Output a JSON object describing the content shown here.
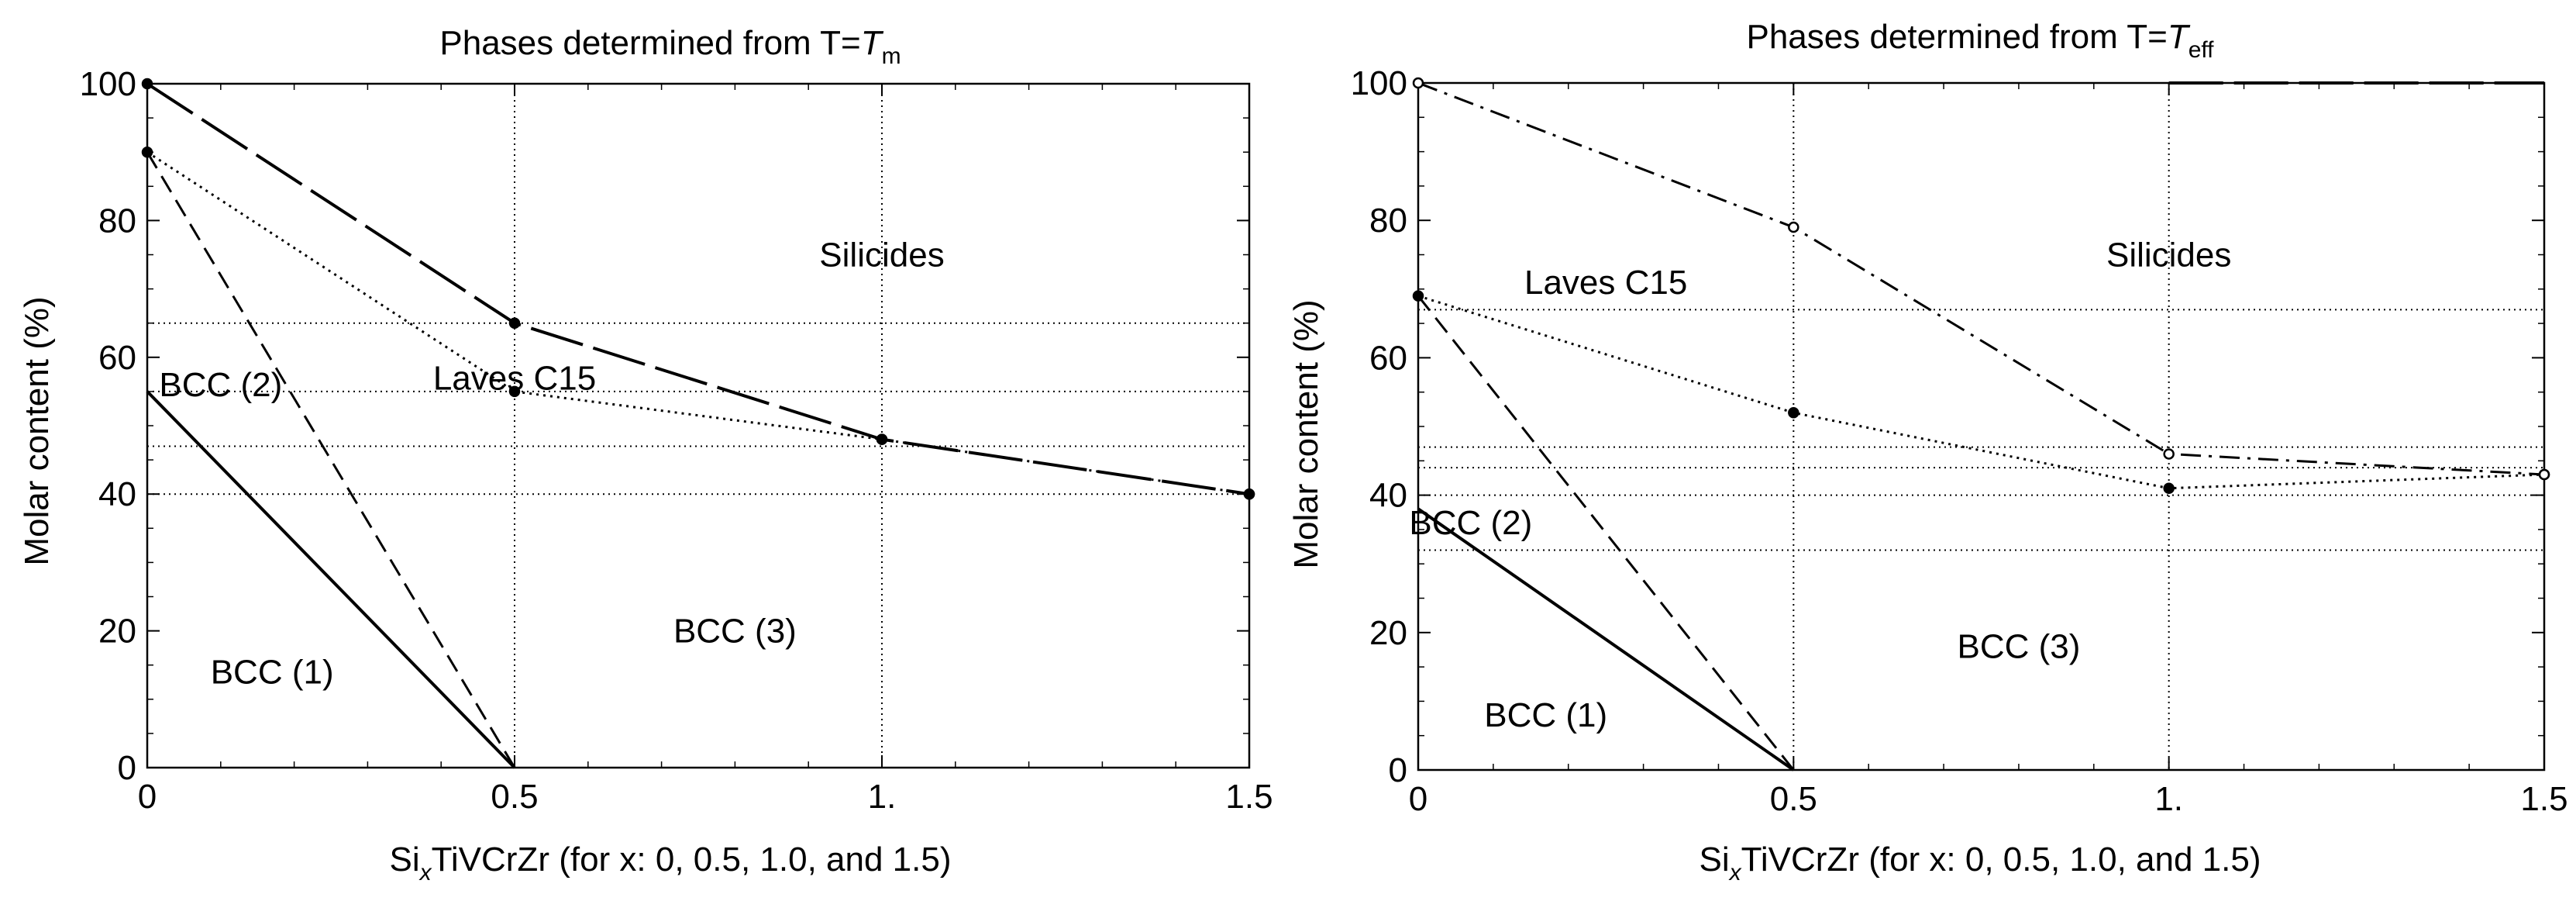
{
  "chart_data": [
    {
      "type": "line",
      "title": "Phases determined from T=Tm",
      "title_main": "Phases determined from T=",
      "title_symbol": "T",
      "title_subscript": "m",
      "xlabel_pre": "Si",
      "xlabel_sub": "x",
      "xlabel_post": "TiVCrZr (for x: 0, 0.5, 1.0, and 1.5)",
      "ylabel": "Molar content (%)",
      "xlim": [
        0,
        1.5
      ],
      "ylim": [
        0,
        100
      ],
      "xticks": [
        0,
        0.5,
        1,
        1.5
      ],
      "xtick_labels": [
        "0",
        "0.5",
        "1.",
        "1.5"
      ],
      "yticks": [
        0,
        20,
        40,
        60,
        80,
        100
      ],
      "ytick_labels": [
        "0",
        "20",
        "40",
        "60",
        "80",
        "100"
      ],
      "grid_x": [
        0.5,
        1.0
      ],
      "grid_y": [
        40,
        47,
        55,
        65
      ],
      "series": [
        {
          "name": "BCC (1)",
          "style": "solid",
          "marker": "none",
          "x": [
            0,
            0.5
          ],
          "y": [
            55,
            0
          ]
        },
        {
          "name": "BCC (2)",
          "style": "dashed",
          "marker": "none",
          "x": [
            0,
            0.5
          ],
          "y": [
            90,
            0
          ]
        },
        {
          "name": "BCC (3)",
          "style": "dotted",
          "marker": "filled",
          "x": [
            0,
            0.5,
            1.0,
            1.5
          ],
          "y": [
            90,
            55,
            48,
            40
          ]
        },
        {
          "name": "Laves C15",
          "style": "longdash",
          "marker": "filled",
          "x": [
            0,
            0.5,
            1.0,
            1.5
          ],
          "y": [
            100,
            65,
            48,
            40
          ]
        }
      ],
      "annotations": [
        {
          "text": "Silicides",
          "x": 1.0,
          "y": 75
        },
        {
          "text": "Laves C15",
          "x": 0.5,
          "y": 57
        },
        {
          "text": "BCC (2)",
          "x": 0.1,
          "y": 56
        },
        {
          "text": "BCC (3)",
          "x": 0.8,
          "y": 20
        },
        {
          "text": "BCC (1)",
          "x": 0.17,
          "y": 14
        }
      ]
    },
    {
      "type": "line",
      "title": "Phases determined from T=Teff",
      "title_main": "Phases determined from T=",
      "title_symbol": "T",
      "title_subscript": "eff",
      "xlabel_pre": "Si",
      "xlabel_sub": "x",
      "xlabel_post": "TiVCrZr (for x: 0, 0.5, 1.0, and 1.5)",
      "ylabel": "Molar content (%)",
      "xlim": [
        0,
        1.5
      ],
      "ylim": [
        0,
        100
      ],
      "xticks": [
        0,
        0.5,
        1,
        1.5
      ],
      "xtick_labels": [
        "0",
        "0.5",
        "1.",
        "1.5"
      ],
      "yticks": [
        0,
        20,
        40,
        60,
        80,
        100
      ],
      "ytick_labels": [
        "0",
        "20",
        "40",
        "60",
        "80",
        "100"
      ],
      "grid_x": [
        0.5,
        1.0
      ],
      "grid_y": [
        32,
        40,
        44,
        47,
        67
      ],
      "series": [
        {
          "name": "BCC (1)",
          "style": "solid",
          "marker": "none",
          "x": [
            0,
            0.5
          ],
          "y": [
            38,
            0
          ]
        },
        {
          "name": "BCC (2)",
          "style": "dashed",
          "marker": "none",
          "x": [
            0,
            0.5
          ],
          "y": [
            69,
            0
          ]
        },
        {
          "name": "BCC (3)",
          "style": "dotted",
          "marker": "filled",
          "x": [
            0,
            0.5,
            1.0,
            1.5
          ],
          "y": [
            69,
            52,
            41,
            43
          ]
        },
        {
          "name": "Laves C15",
          "style": "dashdot",
          "marker": "open",
          "x": [
            0,
            0.5,
            1.0,
            1.5
          ],
          "y": [
            100,
            79,
            46,
            43
          ]
        },
        {
          "name": "Silicides",
          "style": "longdash",
          "marker": "none",
          "x": [
            1.0,
            1.5
          ],
          "y": [
            100,
            100
          ]
        }
      ],
      "annotations": [
        {
          "text": "Silicides",
          "x": 1.0,
          "y": 75
        },
        {
          "text": "Laves C15",
          "x": 0.25,
          "y": 71
        },
        {
          "text": "BCC (2)",
          "x": 0.07,
          "y": 36
        },
        {
          "text": "BCC (3)",
          "x": 0.8,
          "y": 18
        },
        {
          "text": "BCC (1)",
          "x": 0.17,
          "y": 8
        }
      ]
    }
  ]
}
